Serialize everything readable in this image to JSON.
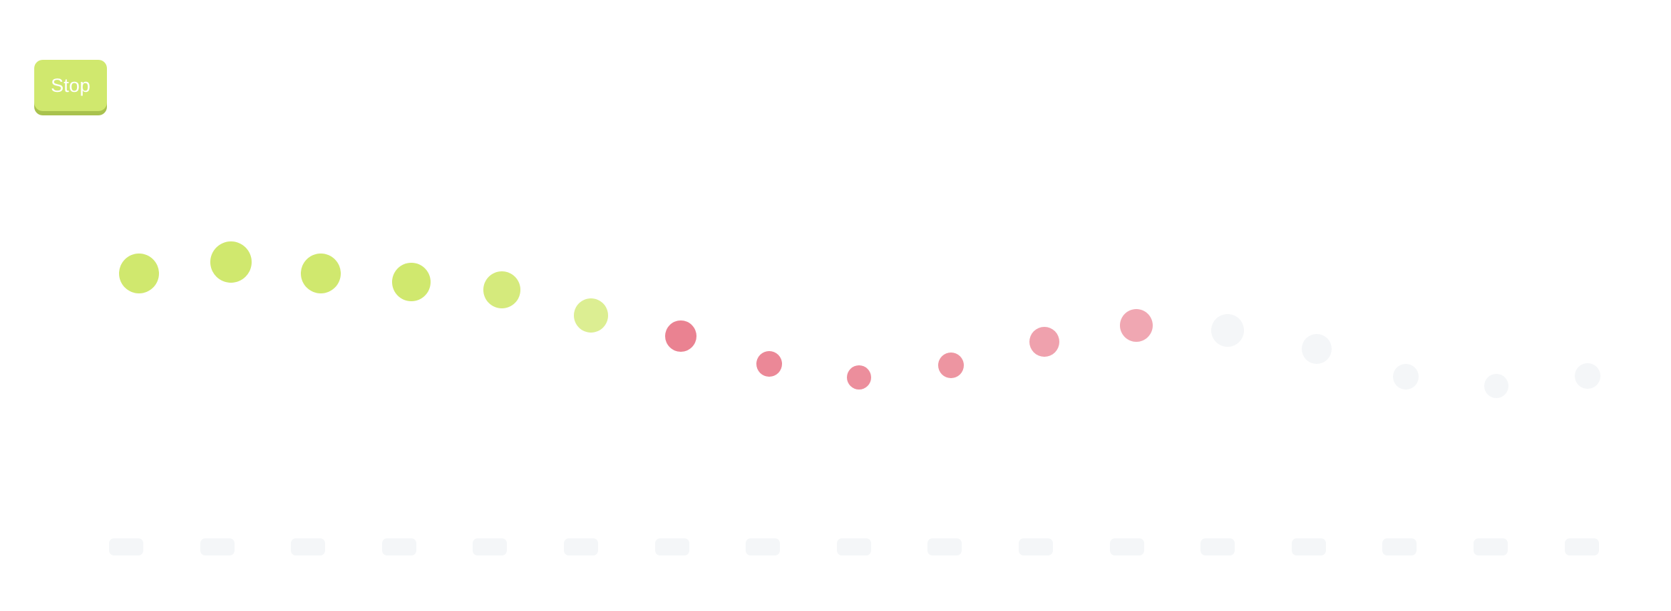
{
  "controls": {
    "stop_label": "Stop",
    "stop_color": "#d0e86e"
  },
  "colors": {
    "green": "#d0e86e",
    "red": "#ea8291",
    "light": "#f4f6f8"
  },
  "dots": [
    {
      "color": "#d0e86e",
      "opacity": 1.0
    },
    {
      "color": "#d0e86e",
      "opacity": 1.0
    },
    {
      "color": "#d0e86e",
      "opacity": 1.0
    },
    {
      "color": "#d0e86e",
      "opacity": 1.0
    },
    {
      "color": "#d0e86e",
      "opacity": 0.9
    },
    {
      "color": "#d0e86e",
      "opacity": 0.75
    },
    {
      "color": "#ea8291",
      "opacity": 1.0
    },
    {
      "color": "#ea8291",
      "opacity": 0.95
    },
    {
      "color": "#ea8291",
      "opacity": 0.9
    },
    {
      "color": "#ea8291",
      "opacity": 0.85
    },
    {
      "color": "#ea8291",
      "opacity": 0.75
    },
    {
      "color": "#ea8291",
      "opacity": 0.7
    },
    {
      "color": "#f4f6f8",
      "opacity": 1.0
    },
    {
      "color": "#f4f6f8",
      "opacity": 1.0
    },
    {
      "color": "#f4f6f8",
      "opacity": 1.0
    },
    {
      "color": "#f4f6f8",
      "opacity": 1.0
    },
    {
      "color": "#f4f6f8",
      "opacity": 1.0
    }
  ],
  "pill_color": "#f4f6f8",
  "pill_count": 17
}
